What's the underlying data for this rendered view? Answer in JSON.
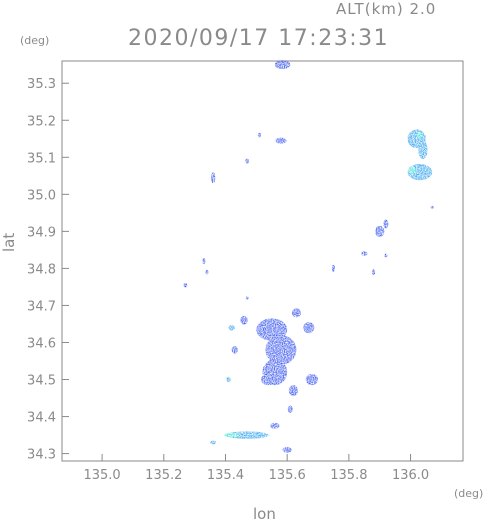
{
  "header": {
    "altitude_label": "ALT(km) 2.0",
    "timestamp": "2020/09/17 17:23:31"
  },
  "chart_data": {
    "type": "heatmap",
    "title": "2020/09/17 17:23:31",
    "subtitle": "ALT(km) 2.0",
    "xlabel": "lon",
    "ylabel": "lat",
    "x_unit": "(deg)",
    "y_unit": "(deg)",
    "xlim": [
      134.87,
      136.17
    ],
    "ylim": [
      34.28,
      35.36
    ],
    "x_ticks": [
      "135.0",
      "135.2",
      "135.4",
      "135.6",
      "135.8",
      "136.0"
    ],
    "y_ticks": [
      "34.3",
      "34.4",
      "34.5",
      "34.6",
      "34.7",
      "34.8",
      "34.9",
      "35.0",
      "35.1",
      "35.2",
      "35.3"
    ],
    "grid": false,
    "colors": {
      "axis": "#8a8a8a",
      "echo_low": "#3f5cf0",
      "echo_mid": "#3aa6ee",
      "echo_high": "#3fe3d2"
    },
    "echoes": [
      {
        "lon": 135.585,
        "lat": 35.35,
        "rx": 0.025,
        "ry": 0.012,
        "level": 1
      },
      {
        "lon": 135.51,
        "lat": 35.16,
        "rx": 0.005,
        "ry": 0.006,
        "level": 1
      },
      {
        "lon": 135.58,
        "lat": 35.145,
        "rx": 0.018,
        "ry": 0.008,
        "level": 1
      },
      {
        "lon": 135.47,
        "lat": 35.09,
        "rx": 0.006,
        "ry": 0.007,
        "level": 1
      },
      {
        "lon": 135.36,
        "lat": 35.045,
        "rx": 0.007,
        "ry": 0.015,
        "level": 1
      },
      {
        "lon": 136.02,
        "lat": 35.15,
        "rx": 0.03,
        "ry": 0.025,
        "level": 2
      },
      {
        "lon": 136.04,
        "lat": 35.12,
        "rx": 0.015,
        "ry": 0.025,
        "level": 2
      },
      {
        "lon": 136.03,
        "lat": 35.06,
        "rx": 0.04,
        "ry": 0.022,
        "level": 2
      },
      {
        "lon": 136.005,
        "lat": 35.065,
        "rx": 0.012,
        "ry": 0.01,
        "level": 3
      },
      {
        "lon": 136.03,
        "lat": 35.16,
        "rx": 0.01,
        "ry": 0.008,
        "level": 3
      },
      {
        "lon": 135.9,
        "lat": 34.9,
        "rx": 0.015,
        "ry": 0.015,
        "level": 1
      },
      {
        "lon": 135.92,
        "lat": 34.92,
        "rx": 0.008,
        "ry": 0.012,
        "level": 1
      },
      {
        "lon": 135.85,
        "lat": 34.84,
        "rx": 0.01,
        "ry": 0.006,
        "level": 1
      },
      {
        "lon": 135.75,
        "lat": 34.8,
        "rx": 0.005,
        "ry": 0.01,
        "level": 1
      },
      {
        "lon": 135.88,
        "lat": 34.79,
        "rx": 0.005,
        "ry": 0.008,
        "level": 1
      },
      {
        "lon": 135.92,
        "lat": 34.835,
        "rx": 0.004,
        "ry": 0.005,
        "level": 1
      },
      {
        "lon": 135.33,
        "lat": 34.82,
        "rx": 0.005,
        "ry": 0.008,
        "level": 1
      },
      {
        "lon": 135.34,
        "lat": 34.79,
        "rx": 0.005,
        "ry": 0.006,
        "level": 1
      },
      {
        "lon": 135.27,
        "lat": 34.755,
        "rx": 0.006,
        "ry": 0.006,
        "level": 1
      },
      {
        "lon": 135.47,
        "lat": 34.72,
        "rx": 0.004,
        "ry": 0.004,
        "level": 1
      },
      {
        "lon": 135.46,
        "lat": 34.66,
        "rx": 0.012,
        "ry": 0.012,
        "level": 1
      },
      {
        "lon": 135.42,
        "lat": 34.64,
        "rx": 0.01,
        "ry": 0.008,
        "level": 2
      },
      {
        "lon": 135.43,
        "lat": 34.58,
        "rx": 0.01,
        "ry": 0.01,
        "level": 1
      },
      {
        "lon": 135.55,
        "lat": 34.635,
        "rx": 0.05,
        "ry": 0.03,
        "level": 1
      },
      {
        "lon": 135.58,
        "lat": 34.58,
        "rx": 0.05,
        "ry": 0.04,
        "level": 1
      },
      {
        "lon": 135.63,
        "lat": 34.68,
        "rx": 0.015,
        "ry": 0.012,
        "level": 1
      },
      {
        "lon": 135.67,
        "lat": 34.64,
        "rx": 0.018,
        "ry": 0.015,
        "level": 1
      },
      {
        "lon": 135.56,
        "lat": 34.52,
        "rx": 0.04,
        "ry": 0.035,
        "level": 1
      },
      {
        "lon": 135.54,
        "lat": 34.5,
        "rx": 0.025,
        "ry": 0.015,
        "level": 1
      },
      {
        "lon": 135.62,
        "lat": 34.47,
        "rx": 0.015,
        "ry": 0.015,
        "level": 1
      },
      {
        "lon": 135.68,
        "lat": 34.5,
        "rx": 0.02,
        "ry": 0.015,
        "level": 1
      },
      {
        "lon": 135.61,
        "lat": 34.42,
        "rx": 0.008,
        "ry": 0.01,
        "level": 1
      },
      {
        "lon": 135.41,
        "lat": 34.5,
        "rx": 0.007,
        "ry": 0.007,
        "level": 2
      },
      {
        "lon": 135.56,
        "lat": 34.375,
        "rx": 0.015,
        "ry": 0.008,
        "level": 1
      },
      {
        "lon": 135.47,
        "lat": 34.35,
        "rx": 0.07,
        "ry": 0.01,
        "level": 2
      },
      {
        "lon": 135.42,
        "lat": 34.35,
        "rx": 0.025,
        "ry": 0.006,
        "level": 3
      },
      {
        "lon": 135.36,
        "lat": 34.33,
        "rx": 0.01,
        "ry": 0.005,
        "level": 2
      },
      {
        "lon": 135.6,
        "lat": 34.31,
        "rx": 0.015,
        "ry": 0.008,
        "level": 1
      },
      {
        "lon": 136.07,
        "lat": 34.965,
        "rx": 0.003,
        "ry": 0.004,
        "level": 1
      }
    ]
  }
}
